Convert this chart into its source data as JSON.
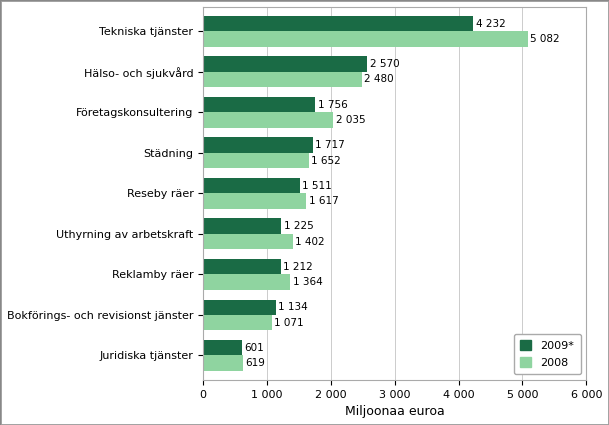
{
  "categories_display": [
    "Juridiska tjänster",
    "Bokförings- och revisionst jänster",
    "Reklamby räer",
    "Uthyrning av arbetskraft",
    "Reseby räer",
    "Städning",
    "Företagskonsultering",
    "Hälso- och sjukvård",
    "Tekniska tjänster"
  ],
  "values_2009": [
    601,
    1134,
    1212,
    1225,
    1511,
    1717,
    1756,
    2570,
    4232
  ],
  "values_2008": [
    619,
    1071,
    1364,
    1402,
    1617,
    1652,
    2035,
    2480,
    5082
  ],
  "labels_2009": [
    "601",
    "1 134",
    "1 212",
    "1 225",
    "1 511",
    "1 717",
    "1 756",
    "2 570",
    "4 232"
  ],
  "labels_2008": [
    "619",
    "1 071",
    "1 364",
    "1 402",
    "1 617",
    "1 652",
    "2 035",
    "2 480",
    "5 082"
  ],
  "color_2009": "#1a6b45",
  "color_2008": "#8fd4a0",
  "xlabel": "Miljoonaa euroa",
  "xlim": [
    0,
    6000
  ],
  "xticks": [
    0,
    1000,
    2000,
    3000,
    4000,
    5000,
    6000
  ],
  "xtick_labels": [
    "0",
    "1 000",
    "2 000",
    "3 000",
    "4 000",
    "5 000",
    "6 000"
  ],
  "legend_2009": "2009*",
  "legend_2008": "2008",
  "bar_height": 0.38,
  "tick_fontsize": 8,
  "label_fontsize": 7.5,
  "xlabel_fontsize": 9
}
